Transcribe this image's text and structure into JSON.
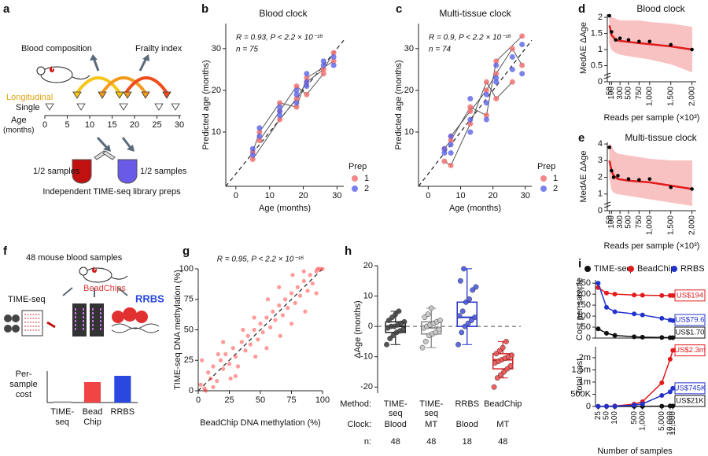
{
  "panel_labels": [
    "a",
    "b",
    "c",
    "d",
    "e",
    "f",
    "g",
    "h",
    "i"
  ],
  "panel_a": {
    "blood_composition": "Blood composition",
    "frailty_index": "Frailty index",
    "longitudinal": "Longitudinal",
    "single": "Single",
    "age": "Age",
    "months": "(months)",
    "age_ticks": [
      0,
      5,
      10,
      15,
      20,
      25,
      30
    ],
    "half_left": "1/2 samples",
    "half_right": "1/2 samples",
    "caption": "Independent TIME-seq library preps"
  },
  "panel_f": {
    "title": "48 mouse blood samples",
    "methods": [
      "TIME-seq",
      "BeadChips",
      "RRBS"
    ]
  },
  "chart_data": [
    {
      "type": "scatter",
      "title": "Blood clock",
      "annotation": "R = 0.93, P < 2.2 × 10⁻¹⁶",
      "n_label": "n = 75",
      "xlabel": "Age (months)",
      "ylabel": "Predicted age (months)",
      "xlim": [
        -3,
        32
      ],
      "ylim": [
        -3,
        36
      ],
      "xticks": [
        0,
        10,
        20,
        30
      ],
      "yticks": [
        10,
        20,
        30
      ],
      "identity_line": true,
      "legend_title": "Prep",
      "x": [
        5,
        5,
        7,
        7,
        13,
        13,
        13,
        18,
        18,
        18,
        21,
        21,
        21,
        26,
        26,
        29,
        29
      ],
      "series": [
        {
          "name": "1",
          "color": "#f06a6a",
          "values": [
            5.2,
            3.5,
            8,
            10,
            13,
            15,
            17,
            18,
            21,
            16,
            22,
            19,
            23,
            25,
            24,
            27,
            29
          ]
        },
        {
          "name": "2",
          "color": "#5a63e6",
          "values": [
            6,
            4.5,
            9,
            11,
            14,
            16,
            15,
            20,
            19,
            17,
            24,
            21,
            22,
            27,
            26,
            26,
            28
          ]
        }
      ]
    },
    {
      "type": "scatter",
      "title": "Multi-tissue clock",
      "annotation": "R = 0.9, P < 2.2 × 10⁻¹⁶",
      "n_label": "n = 74",
      "xlabel": "Age (months)",
      "ylabel": "Predicted age (months)",
      "xlim": [
        -3,
        32
      ],
      "ylim": [
        -3,
        36
      ],
      "xticks": [
        0,
        10,
        20,
        30
      ],
      "yticks": [
        10,
        20,
        30
      ],
      "identity_line": true,
      "legend_title": "Prep",
      "x": [
        5,
        5,
        7,
        7,
        7,
        13,
        13,
        13,
        18,
        18,
        18,
        21,
        21,
        21,
        26,
        26,
        29,
        29
      ],
      "series": [
        {
          "name": "1",
          "color": "#f06a6a",
          "values": [
            3,
            6,
            9,
            2,
            8,
            15,
            12,
            16,
            20,
            22,
            14,
            24,
            18,
            27,
            30,
            22,
            33,
            26
          ]
        },
        {
          "name": "2",
          "color": "#5a63e6",
          "values": [
            6,
            5,
            5,
            7,
            9,
            13,
            18,
            10,
            13,
            17,
            19,
            22,
            26,
            23,
            25,
            28,
            24,
            31
          ]
        }
      ]
    },
    {
      "type": "fit",
      "title": "Blood clock",
      "xlabel": "Reads per sample (×10³)",
      "ylabel": "MedAE ΔAge",
      "xlim": [
        0,
        2100
      ],
      "ylim": [
        0,
        2.1
      ],
      "xticks": [
        50,
        100,
        300,
        500,
        750,
        {
          "value": 1000,
          "label": "1,000"
        },
        {
          "value": 1500,
          "label": "1,500"
        },
        {
          "value": 2000,
          "label": "2,000"
        }
      ],
      "yticks": [
        0,
        0.5,
        1,
        1.5,
        2
      ],
      "x": [
        50,
        100,
        200,
        300,
        500,
        750,
        1000,
        1500,
        2000
      ],
      "values": [
        2.05,
        1.55,
        1.3,
        1.35,
        1.3,
        1.25,
        1.25,
        1.15,
        1.0
      ],
      "fit": [
        1.75,
        1.45,
        1.3,
        1.27,
        1.24,
        1.2,
        1.17,
        1.1,
        1.0
      ],
      "band_low": [
        1.2,
        1.0,
        0.9,
        0.85,
        0.8,
        0.75,
        0.7,
        0.55,
        0.3
      ],
      "band_high": [
        2.1,
        2.0,
        1.95,
        1.9,
        1.9,
        1.9,
        1.85,
        1.8,
        1.7
      ],
      "color": "#000000",
      "fit_color": "#e01b1b",
      "band_color": "#f9c2c2"
    },
    {
      "type": "fit",
      "title": "Multi-tissue clock",
      "xlabel": "Reads per sample (×10³)",
      "ylabel": "MedAE ΔAge",
      "xlim": [
        0,
        2100
      ],
      "ylim": [
        0,
        4.1
      ],
      "xticks": [
        50,
        100,
        300,
        500,
        750,
        {
          "value": 1000,
          "label": "1,000"
        },
        {
          "value": 1500,
          "label": "1,500"
        },
        {
          "value": 2000,
          "label": "2,000"
        }
      ],
      "yticks": [
        0,
        1,
        2,
        3,
        4
      ],
      "x": [
        50,
        100,
        150,
        250,
        500,
        750,
        1000,
        1500,
        2000
      ],
      "values": [
        3.8,
        2.4,
        2.0,
        2.1,
        1.9,
        1.85,
        1.9,
        1.4,
        1.3
      ],
      "fit": [
        3.0,
        2.4,
        2.1,
        1.9,
        1.8,
        1.75,
        1.7,
        1.5,
        1.3
      ],
      "band_low": [
        2.0,
        1.3,
        1.1,
        1.0,
        0.9,
        0.8,
        0.7,
        0.5,
        0.3
      ],
      "band_high": [
        4.0,
        3.9,
        3.6,
        3.4,
        3.3,
        3.2,
        3.1,
        3.0,
        3.0
      ],
      "color": "#000000",
      "fit_color": "#e01b1b",
      "band_color": "#f9c2c2"
    },
    {
      "type": "bar",
      "categories": [
        [
          "TIME-",
          "seq"
        ],
        [
          "Bead",
          "Chip"
        ],
        [
          "RRBS"
        ]
      ],
      "values": [
        1,
        26,
        34
      ],
      "ylim": [
        0,
        40
      ],
      "colors": [
        "#ffffff",
        "#f04545",
        "#2a48e0"
      ],
      "edge_color": "#999999",
      "ylabel_lines": [
        "Per-",
        "sample",
        "cost"
      ]
    },
    {
      "type": "scatter",
      "annotation": "R = 0.95, P < 2.2 × 10⁻¹⁶",
      "xlabel": "BeadChip DNA methylation (%)",
      "ylabel": "TIME-seq DNA methylation (%)",
      "xlim": [
        0,
        100
      ],
      "ylim": [
        0,
        100
      ],
      "xticks": [
        0,
        25,
        50,
        75,
        100
      ],
      "yticks": [
        0,
        25,
        50,
        75,
        100
      ],
      "identity_line": true,
      "x": [
        2,
        5,
        8,
        10,
        12,
        15,
        18,
        20,
        22,
        25,
        28,
        30,
        32,
        35,
        38,
        40,
        42,
        45,
        48,
        50,
        52,
        55,
        58,
        60,
        62,
        65,
        68,
        70,
        72,
        75,
        78,
        80,
        82,
        85,
        88,
        90,
        92,
        95,
        98,
        100,
        3,
        12,
        20,
        30,
        45,
        55,
        65,
        75,
        85,
        95,
        6,
        16,
        26,
        36,
        46,
        56,
        66,
        76,
        86,
        96
      ],
      "series": [
        {
          "color": "#ff2020",
          "values": [
            5,
            2,
            15,
            10,
            20,
            8,
            25,
            18,
            30,
            22,
            35,
            28,
            20,
            40,
            33,
            45,
            38,
            50,
            42,
            55,
            48,
            60,
            52,
            65,
            58,
            70,
            62,
            75,
            68,
            80,
            72,
            85,
            78,
            90,
            82,
            95,
            88,
            98,
            100,
            100,
            25,
            3,
            40,
            12,
            60,
            35,
            85,
            55,
            98,
            80,
            0,
            30,
            10,
            50,
            28,
            75,
            45,
            95,
            65,
            100
          ]
        }
      ]
    },
    {
      "type": "box",
      "ylabel": "ΔAge (months)",
      "ylim": [
        -22,
        20
      ],
      "yticks": [
        -20,
        -10,
        0,
        10,
        20
      ],
      "reference_line": 0,
      "row_labels": [
        "Method:",
        "Clock:",
        "n:"
      ],
      "categories": [
        [
          "TIME-",
          "seq"
        ],
        [
          "TIME-",
          "seq"
        ],
        [
          "RRBS"
        ],
        [
          "BeadChip"
        ]
      ],
      "clocks": [
        "Blood",
        "MT",
        "Blood",
        "MT"
      ],
      "n": [
        48,
        48,
        18,
        48
      ],
      "boxes": [
        {
          "q1": -2,
          "median": 0,
          "q3": 1.5,
          "whisker_low": -6,
          "whisker_high": 5,
          "color": "#222222",
          "point_color": "#444444",
          "points": [
            -6,
            -4,
            -3,
            -2,
            -1.5,
            -1,
            -0.5,
            0,
            0,
            0.5,
            1,
            1.5,
            2,
            3,
            4,
            5
          ]
        },
        {
          "q1": -2.5,
          "median": -0.5,
          "q3": 1.5,
          "whisker_low": -7,
          "whisker_high": 6,
          "color": "#888888",
          "point_color": "#c4c4c4",
          "points": [
            -7,
            -5,
            -3,
            -2.5,
            -2,
            -1,
            -0.5,
            0,
            0.5,
            1,
            1.5,
            2,
            3,
            4,
            6
          ]
        },
        {
          "q1": 0,
          "median": 3,
          "q3": 8,
          "whisker_low": -6,
          "whisker_high": 19,
          "color": "#2233cc",
          "point_color": "#4a5ae0",
          "points": [
            -6,
            -2,
            0,
            1,
            2,
            3,
            3.5,
            5,
            8,
            9,
            12,
            13,
            15,
            19
          ]
        },
        {
          "q1": -14,
          "median": -11,
          "q3": -9,
          "whisker_low": -17,
          "whisker_high": -5,
          "color": "#d81e1e",
          "point_color": "#f05050",
          "points": [
            -20,
            -17,
            -16,
            -15,
            -14,
            -13,
            -12,
            -11.5,
            -11,
            -10.5,
            -10,
            -9.5,
            -9,
            -8,
            -7,
            -5
          ]
        }
      ]
    },
    {
      "type": "line",
      "ylabel": "Cost per sample",
      "xscale": "log",
      "xlim": [
        20,
        14000
      ],
      "ylim": [
        0,
        265
      ],
      "yticks": [
        0,
        50,
        100,
        150,
        200,
        250
      ],
      "x": [
        25,
        50,
        100,
        500,
        1000,
        5000,
        10000,
        12500
      ],
      "series": [
        {
          "name": "TIME-seq",
          "color": "#111111",
          "values": [
            42,
            22,
            12,
            6,
            4,
            2.5,
            1.9,
            1.7
          ],
          "value_labels": [
            null,
            null,
            null,
            null,
            null,
            null,
            null,
            "US$1.70"
          ]
        },
        {
          "name": "BeadChip",
          "color": "#e31a1c",
          "values": [
            230,
            205,
            200,
            196,
            195,
            194,
            194,
            194
          ],
          "value_labels": [
            null,
            null,
            null,
            null,
            null,
            null,
            null,
            "US$194"
          ]
        },
        {
          "name": "RRBS",
          "color": "#2233cc",
          "values": [
            250,
            140,
            120,
            110,
            105,
            90,
            82,
            79.6
          ],
          "value_labels": [
            null,
            null,
            null,
            null,
            null,
            null,
            null,
            "US$79.6"
          ]
        }
      ]
    },
    {
      "type": "line",
      "ylabel": "Total cost",
      "xlabel": "Number of samples",
      "xscale": "log",
      "xlim": [
        20,
        14000
      ],
      "ylim": [
        0,
        2450000
      ],
      "yticks": [
        0,
        {
          "value": 500000,
          "label": "500K"
        },
        {
          "value": 1000000,
          "label": "1m"
        },
        {
          "value": 1500000,
          "label": "1.5m"
        },
        {
          "value": 2000000,
          "label": "2m"
        }
      ],
      "xticks": [
        25,
        50,
        100,
        500,
        {
          "value": 1000,
          "label": "1,000"
        },
        {
          "value": 5000,
          "label": "5,000"
        },
        {
          "value": 10000,
          "label": "10,000"
        },
        {
          "value": 12500,
          "label": "12,500"
        }
      ],
      "x": [
        25,
        50,
        100,
        500,
        1000,
        5000,
        10000,
        12500
      ],
      "series": [
        {
          "color": "#111111",
          "values": [
            1050,
            1100,
            1200,
            3000,
            4000,
            12500,
            19000,
            21000
          ],
          "value_labels": [
            null,
            null,
            null,
            null,
            null,
            null,
            null,
            "US$21K"
          ]
        },
        {
          "color": "#e31a1c",
          "values": [
            5750,
            10250,
            20000,
            98000,
            195000,
            970000,
            1940000,
            2300000
          ],
          "value_labels": [
            null,
            null,
            null,
            null,
            null,
            null,
            null,
            "US$2.3m"
          ]
        },
        {
          "color": "#2233cc",
          "values": [
            6250,
            7000,
            12000,
            55000,
            105000,
            450000,
            600000,
            745000
          ],
          "value_labels": [
            null,
            null,
            null,
            null,
            null,
            null,
            null,
            "US$745K"
          ]
        }
      ]
    }
  ]
}
